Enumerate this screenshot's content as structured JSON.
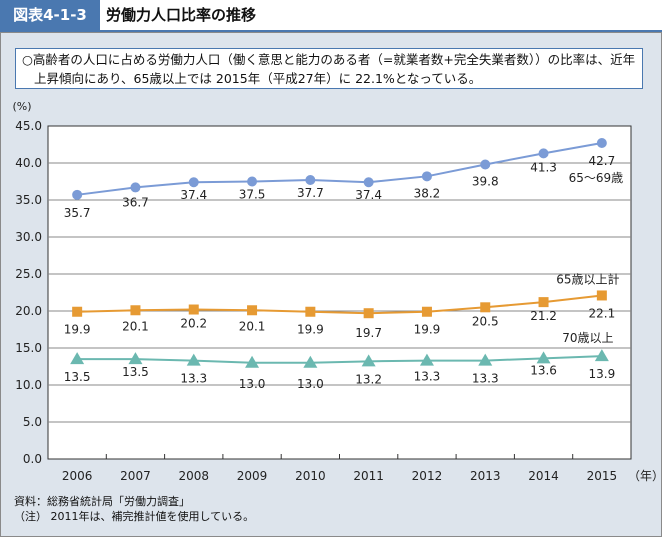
{
  "header": {
    "figure_label": "図表4-1-3",
    "title": "労働力人口比率の推移"
  },
  "summary": {
    "line1": "○高齢者の人口に占める労働力人口（働く意思と能力のある者（=就業者数+完全失業者数））の比率は、近年",
    "line2": "上昇傾向にあり、65歳以上では 2015年（平成27年）に 22.1%となっている。"
  },
  "notes": {
    "source": "資料：総務省統計局「労働力調査」",
    "note": "（注） 2011年は、補完推計値を使用している。"
  },
  "colors": {
    "series_65_69": "#7b9bd6",
    "series_65_plus": "#e69a33",
    "series_70_plus": "#6bb8b0",
    "accent": "#4a78b0"
  },
  "chart_data": {
    "type": "line",
    "title": "労働力人口比率の推移",
    "ylabel": "(%)",
    "xlabel": "（年）",
    "ylim": [
      0,
      45
    ],
    "yticks": [
      "0.0",
      "5.0",
      "10.0",
      "15.0",
      "20.0",
      "25.0",
      "30.0",
      "35.0",
      "40.0",
      "45.0"
    ],
    "grid": true,
    "categories": [
      "2006",
      "2007",
      "2008",
      "2009",
      "2010",
      "2011",
      "2012",
      "2013",
      "2014",
      "2015"
    ],
    "series": [
      {
        "name": "65～69歳",
        "marker": "circle",
        "values": [
          35.7,
          36.7,
          37.4,
          37.5,
          37.7,
          37.4,
          38.2,
          39.8,
          41.3,
          42.7
        ],
        "labels": [
          "35.7",
          "36.7",
          "37.4",
          "37.5",
          "37.7",
          "37.4",
          "38.2",
          "39.8",
          "41.3",
          "42.7"
        ]
      },
      {
        "name": "65歳以上計",
        "marker": "square",
        "values": [
          19.9,
          20.1,
          20.2,
          20.1,
          19.9,
          19.7,
          19.9,
          20.5,
          21.2,
          22.1
        ],
        "labels": [
          "19.9",
          "20.1",
          "20.2",
          "20.1",
          "19.9",
          "19.7",
          "19.9",
          "20.5",
          "21.2",
          "22.1"
        ]
      },
      {
        "name": "70歳以上",
        "marker": "triangle",
        "values": [
          13.5,
          13.5,
          13.3,
          13.0,
          13.0,
          13.2,
          13.3,
          13.3,
          13.6,
          13.9
        ],
        "labels": [
          "13.5",
          "13.5",
          "13.3",
          "13.0",
          "13.0",
          "13.2",
          "13.3",
          "13.3",
          "13.6",
          "13.9"
        ]
      }
    ]
  }
}
